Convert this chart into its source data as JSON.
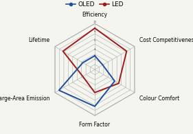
{
  "labels": [
    "Efficiency",
    "Cost Competitiveness",
    "Colour Comfort",
    "Form Factor",
    "Large-Area Emission",
    "Lifetime"
  ],
  "oled_values": [
    3,
    2,
    5,
    8,
    9,
    3
  ],
  "led_values": [
    9,
    8,
    6,
    5,
    3,
    8
  ],
  "oled_color": "#1f4e9e",
  "led_color": "#9e1a1a",
  "scale_max": 10,
  "num_rings": 9,
  "background_color": "#f5f5f0",
  "legend_oled": "OLED",
  "legend_led": "LED",
  "grid_color": "#aaaaaa",
  "label_fontsize": 5.5,
  "legend_fontsize": 6.5,
  "ring_labels": [
    "2",
    "4",
    "6",
    "8",
    "10"
  ],
  "ring_label_values": [
    2,
    4,
    6,
    8,
    10
  ]
}
